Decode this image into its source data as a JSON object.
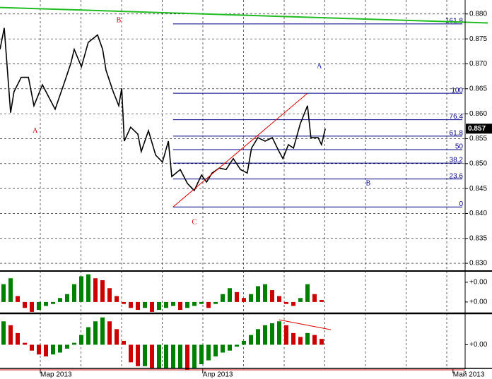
{
  "chart_data": [
    {
      "type": "line",
      "series": [
        {
          "color": "#000000",
          "x": [
            0,
            1,
            2.5,
            3.3,
            5,
            6.7,
            8,
            10,
            11.7,
            13,
            15,
            16.7,
            17.5,
            19.2,
            20.8,
            23,
            24.2,
            25,
            26.7,
            28,
            28.7,
            29.3,
            30.8,
            32.5,
            33.3,
            35,
            36.7,
            38.3,
            39.7,
            40.5,
            42.5,
            44.2,
            45.8,
            47.5,
            48.7,
            50,
            51.7,
            53.3,
            55,
            56.7,
            58.3,
            59.3,
            60.8,
            62.5,
            64.2,
            65.8,
            66.7,
            68,
            69.2,
            70.8,
            72.5,
            73.3,
            75,
            75.8,
            76.7
          ],
          "values": [
            0.8729,
            0.8772,
            0.8602,
            0.8644,
            0.8673,
            0.8673,
            0.8616,
            0.8658,
            0.863,
            0.8609,
            0.8658,
            0.8701,
            0.8729,
            0.8694,
            0.8743,
            0.8758,
            0.8729,
            0.8687,
            0.8644,
            0.8616,
            0.8651,
            0.8545,
            0.8573,
            0.8559,
            0.8524,
            0.8566,
            0.8517,
            0.8503,
            0.8545,
            0.8474,
            0.8488,
            0.846,
            0.8446,
            0.8477,
            0.8463,
            0.8481,
            0.8491,
            0.8488,
            0.851,
            0.8488,
            0.8481,
            0.8531,
            0.8552,
            0.8545,
            0.8552,
            0.8524,
            0.851,
            0.8538,
            0.8531,
            0.858,
            0.8616,
            0.8552,
            0.8552,
            0.8538,
            0.857
          ]
        },
        {
          "color": "#22bb22",
          "x": [
            0,
            115
          ],
          "values": [
            0.8813,
            0.8782
          ]
        },
        {
          "color": "#dd0000",
          "x": [
            40.8,
            72.5
          ],
          "values": [
            0.8413,
            0.8641
          ]
        }
      ],
      "xlim": [
        0,
        110
      ],
      "ylim": [
        0.8286,
        0.8828
      ],
      "yticks": [
        {
          "value": 0.83,
          "label": "0.830"
        },
        0.835,
        {
          "value": 0.84,
          "label": "0.840"
        },
        0.845,
        {
          "value": 0.85,
          "label": "0.850"
        },
        0.855,
        {
          "value": 0.86,
          "label": "0.860"
        },
        0.865,
        {
          "value": 0.87,
          "label": "0.870"
        },
        0.875,
        {
          "value": 0.88,
          "label": "0.880"
        }
      ],
      "xticks": [
        {
          "value": 9.5,
          "label": "Мар 2013"
        },
        {
          "value": 47.8,
          "label": "Апр 2013"
        },
        {
          "value": 106.8,
          "label": "Май 2013"
        }
      ],
      "grid": true,
      "fib_color": "#000080",
      "fib_start_x": 40.8,
      "fib_levels": [
        {
          "value": 0.878,
          "label": "161.8"
        },
        {
          "value": 0.8641,
          "label": "100"
        },
        {
          "value": 0.8588,
          "label": "76.4"
        },
        {
          "value": 0.8555,
          "label": "61.8"
        },
        {
          "value": 0.8528,
          "label": "50"
        },
        {
          "value": 0.8501,
          "label": "38.2"
        },
        {
          "value": 0.8469,
          "label": "23.6"
        },
        {
          "value": 0.8413,
          "label": "0"
        }
      ],
      "last_price": {
        "value": 0.857,
        "label": "0.857"
      },
      "annotations": [
        {
          "text": "A",
          "color": "#cc0000",
          "x": 8.3,
          "y": 0.8565
        },
        {
          "text": "B",
          "color": "#cc0000",
          "x": 28,
          "y": 0.8787
        },
        {
          "text": "C",
          "color": "#cc0000",
          "x": 45.8,
          "y": 0.8382
        },
        {
          "text": "A",
          "color": "#0000aa",
          "x": 75.3,
          "y": 0.8695
        },
        {
          "text": "B",
          "color": "#0000aa",
          "x": 86.8,
          "y": 0.846
        }
      ]
    },
    {
      "type": "bar",
      "up_color": "#008000",
      "down_color": "#cc0000",
      "values": [
        0.0009,
        0.0012,
        0.0003,
        -0.0003,
        -0.0005,
        -0.0004,
        -0.0002,
        -0.0001,
        0.0002,
        0.0004,
        0.0009,
        0.0013,
        0.0014,
        0.0012,
        0.0011,
        0.0007,
        0.0003,
        -0.0001,
        -0.0003,
        -0.0004,
        -0.0003,
        -0.0005,
        -0.0004,
        -0.0003,
        -0.0002,
        -0.0004,
        -0.0003,
        -0.0002,
        -0.0001,
        -0.0003,
        -0.0001,
        0.0004,
        0.0007,
        0.0005,
        0.0002,
        0.0004,
        0.0008,
        0.0009,
        0.0006,
        0.0003,
        -0.0001,
        -0.0002,
        0.0002,
        0.0009,
        0.0004,
        0.0001
      ],
      "ylim": [
        -0.00054,
        0.00146
      ],
      "yticks": [
        {
          "value": 0.001,
          "label": "+0.00"
        },
        {
          "value": 0,
          "label": "+0.00"
        }
      ]
    },
    {
      "type": "bar",
      "up_color": "#008000",
      "down_color": "#cc0000",
      "values": [
        0.0012,
        0.001,
        0.0006,
        0.0001,
        -0.0003,
        -0.0005,
        -0.0006,
        -0.0005,
        -0.0004,
        -0.0002,
        0.0001,
        0.0005,
        0.0009,
        0.0012,
        0.0014,
        0.0012,
        0.0008,
        0.0002,
        -0.0009,
        -0.0011,
        -0.0011,
        -0.0012,
        -0.0012,
        -0.0012,
        -0.0012,
        -0.0012,
        -0.0013,
        -0.0012,
        -0.001,
        -0.0008,
        -0.0006,
        -0.0004,
        -0.0003,
        -0.0001,
        0.0002,
        0.0005,
        0.0008,
        0.001,
        0.0011,
        0.0012,
        0.001,
        0.0006,
        0.0004,
        0.0006,
        0.0005,
        0.0003
      ],
      "ylim": [
        -0.00125,
        0.0015
      ],
      "yticks": [
        {
          "value": 0,
          "label": "+0.00"
        }
      ],
      "trendline": {
        "color": "#dd0000",
        "x": [
          65.8,
          78
        ],
        "values": [
          0.00128,
          0.00077
        ]
      }
    }
  ]
}
